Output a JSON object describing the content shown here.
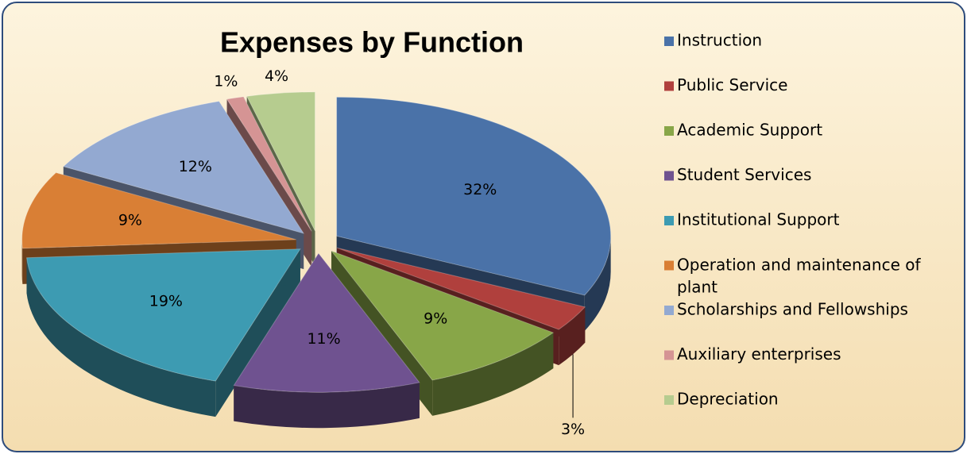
{
  "chart_data": {
    "type": "pie",
    "title": "Expenses by Function",
    "categories": [
      "Instruction",
      "Public Service",
      "Academic Support",
      "Student Services",
      "Institutional Support",
      "Operation and maintenance of plant",
      "Scholarships and Fellowships",
      "Auxiliary enterprises",
      "Depreciation"
    ],
    "values": [
      32,
      3,
      9,
      11,
      19,
      9,
      12,
      1,
      4
    ],
    "value_labels": [
      "32%",
      "3%",
      "9%",
      "11%",
      "19%",
      "9%",
      "12%",
      "1%",
      "4%"
    ],
    "colors": [
      "#4a72a8",
      "#b0403d",
      "#88a648",
      "#6f5290",
      "#3d9bb2",
      "#d97f35",
      "#93a9d1",
      "#d59494",
      "#b6cc8f"
    ],
    "legend": "right"
  }
}
